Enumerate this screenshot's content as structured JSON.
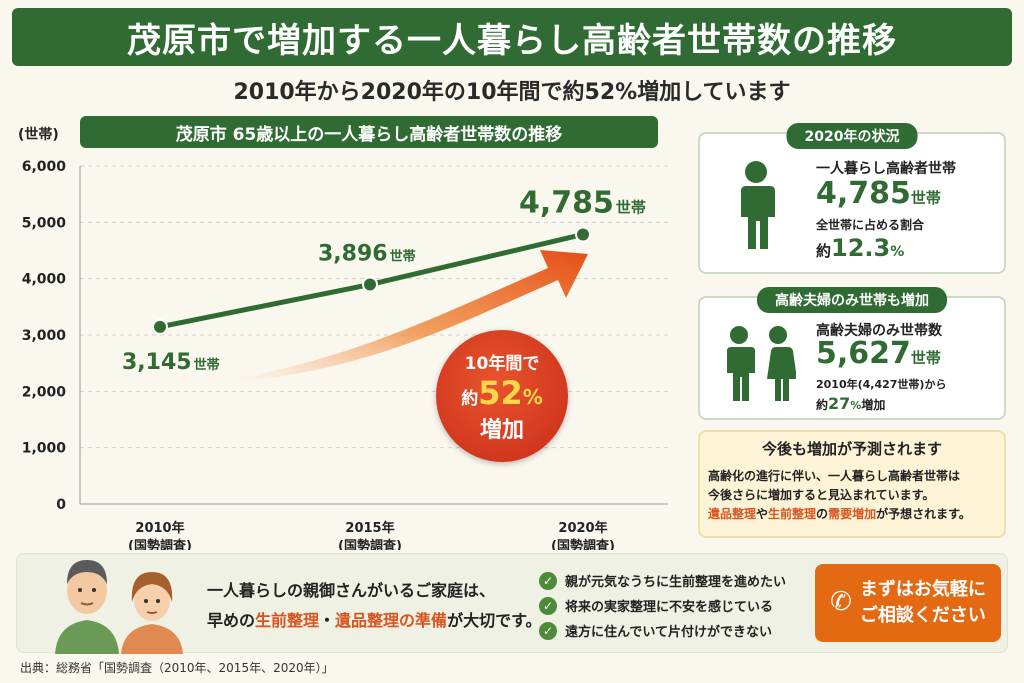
{
  "header": {
    "title": "茂原市で増加する一人暮らし高齢者世帯数の推移",
    "subtitle": "2010年から2020年の10年間で約52%増加しています"
  },
  "chart_data": {
    "type": "line",
    "title": "茂原市 65歳以上の一人暮らし高齢者世帯数の推移",
    "ylabel": "(世帯)",
    "ylim": [
      0,
      6000
    ],
    "yticks": [
      "0",
      "1,000",
      "2,000",
      "3,000",
      "4,000",
      "5,000",
      "6,000"
    ],
    "categories": [
      "2010年",
      "2015年",
      "2020年"
    ],
    "category_sub": "(国勢調査)",
    "values": [
      3145,
      3896,
      4785
    ],
    "value_labels": [
      "3,145",
      "3,896",
      "4,785"
    ],
    "value_unit": "世帯",
    "color": "#2f6b32",
    "grid": true
  },
  "callout": {
    "line1": "10年間で",
    "prefix": "約",
    "number": "52",
    "percent": "%",
    "line3": "増加"
  },
  "card_2020": {
    "heading": "2020年の状況",
    "label": "一人暮らし高齢者世帯",
    "value": "4,785",
    "unit": "世帯",
    "share_label": "全世帯に占める割合",
    "share_prefix": "約",
    "share_value": "12.3",
    "share_unit": "%"
  },
  "card_couple": {
    "heading": "高齢夫婦のみ世帯も増加",
    "label": "高齢夫婦のみ世帯数",
    "value": "5,627",
    "unit": "世帯",
    "note1": "2010年(4,427世帯)から",
    "note2_prefix": "約",
    "note2_value": "27",
    "note2_unit": "%",
    "note2_suffix": "増加"
  },
  "card_forecast": {
    "heading": "今後も増加が予測されます",
    "line1": "高齢化の進行に伴い、一人暮らし高齢者世帯は",
    "line2": "今後さらに増加すると見込まれています。",
    "kw1": "遺品整理",
    "mid1": "や",
    "kw2": "生前整理",
    "mid2": "の",
    "kw3": "需要増加",
    "tail": "が予想されます。"
  },
  "bottom": {
    "msg1": "一人暮らしの親御さんがいるご家庭は、",
    "msg2_a": "早めの",
    "msg2_kw1": "生前整理",
    "msg2_dot": "・",
    "msg2_kw2": "遺品整理の準備",
    "msg2_b": "が大切です。",
    "checks": [
      "親が元気なうちに生前整理を進めたい",
      "将来の実家整理に不安を感じている",
      "遠方に住んでいて片付けができない"
    ],
    "cta_line1": "まずはお気軽に",
    "cta_line2": "ご相談ください"
  },
  "source": "出典：総務省「国勢調査（2010年、2015年、2020年）」",
  "icons": [
    "person-icon",
    "couple-icon",
    "check-icon",
    "phone-icon",
    "growth-arrow-icon"
  ]
}
